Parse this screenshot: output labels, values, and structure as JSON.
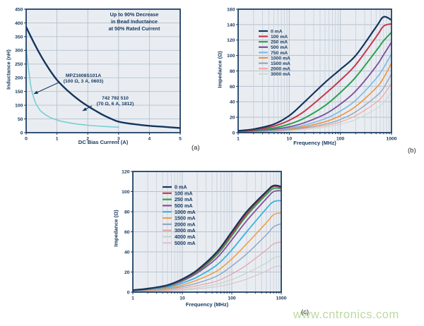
{
  "watermark": {
    "text": "www.cntronics.com",
    "color": "#b9d79e"
  },
  "panel_labels": {
    "a": "(a)",
    "b": "(b)",
    "c": "(c)"
  },
  "colors": {
    "axis": "#14365c",
    "plot_bg": "#e9edf2",
    "grid_major": "#b4c1cd",
    "grid_minor": "#c9d2dc",
    "text": "#14365c"
  },
  "chart_data": [
    {
      "id": "a",
      "type": "line",
      "xlabel": "DC Bias Current (A)",
      "ylabel": "Inductance (nH)",
      "xscale": "linear",
      "xlim": [
        0,
        5
      ],
      "xticks": [
        0,
        1,
        2,
        3,
        4,
        5
      ],
      "ylim": [
        0,
        450
      ],
      "ytick_step": 50,
      "grid": true,
      "annotation_box": [
        "Up to 90% Decrease",
        "in Bead Inductance",
        "at 50% Rated Current"
      ],
      "annotations": [
        {
          "lines": [
            "MPZ1608S101A",
            "(100 Ω, 3 A, 0603)"
          ]
        },
        {
          "lines": [
            "742 792 510",
            "(70 Ω, 6 A, 1812)"
          ]
        }
      ],
      "series": [
        {
          "name": "MPZ1608S101A (100 Ω, 3 A, 0603)",
          "color": "#79ced2",
          "width": 1.6,
          "x": [
            0,
            0.05,
            0.1,
            0.15,
            0.2,
            0.3,
            0.4,
            0.5,
            0.75,
            1,
            1.25,
            1.5,
            2,
            2.5,
            3
          ],
          "y": [
            305,
            258,
            212,
            172,
            145,
            110,
            90,
            76,
            57,
            46,
            39,
            34,
            27,
            23,
            20
          ]
        },
        {
          "name": "742 792 510 (70 Ω, 6 A, 1812)",
          "color": "#14365c",
          "width": 2.4,
          "x": [
            0,
            0.25,
            0.5,
            0.75,
            1,
            1.25,
            1.5,
            1.75,
            2,
            2.25,
            2.5,
            2.75,
            3,
            3.5,
            4,
            4.5,
            5
          ],
          "y": [
            385,
            328,
            276,
            231,
            192,
            163,
            138,
            116,
            97,
            80,
            64,
            51,
            40,
            31,
            25,
            21,
            17
          ]
        }
      ]
    },
    {
      "id": "b",
      "type": "line",
      "xlabel": "Frequency (MHz)",
      "ylabel": "Impedance (Ω)",
      "xscale": "log",
      "xlim": [
        1,
        1000
      ],
      "xticklabels": [
        "1",
        "10",
        "100",
        "1000"
      ],
      "ylim": [
        0,
        160
      ],
      "ytick_step": 20,
      "grid": true,
      "legend_position": "upper-left",
      "x": [
        1,
        2,
        5,
        10,
        20,
        50,
        100,
        200,
        500,
        700,
        1000
      ],
      "series": [
        {
          "name": "0 mA",
          "color": "#14365c",
          "width": 2.2,
          "values": [
            2.5,
            4.5,
            11,
            22,
            40,
            65,
            82,
            100,
            137,
            150,
            146
          ]
        },
        {
          "name": "100 mA",
          "color": "#c23a50",
          "width": 2.0,
          "values": [
            2,
            3.5,
            8.5,
            16,
            28,
            50,
            68,
            88,
            124,
            138,
            141
          ]
        },
        {
          "name": "250 mA",
          "color": "#2da04d",
          "width": 2.0,
          "values": [
            1.8,
            3,
            6,
            11,
            19,
            35,
            52,
            72,
            106,
            119,
            130
          ]
        },
        {
          "name": "500 mA",
          "color": "#7e4d9b",
          "width": 1.8,
          "values": [
            1.5,
            2.5,
            4.5,
            7.5,
            13,
            24,
            37,
            54,
            86,
            101,
            117
          ]
        },
        {
          "name": "750 mA",
          "color": "#7db9e3",
          "width": 1.6,
          "values": [
            1.2,
            2,
            3.5,
            6,
            10,
            18,
            28,
            42,
            70,
            84,
            102
          ]
        },
        {
          "name": "1000 mA",
          "color": "#f0923f",
          "width": 1.6,
          "values": [
            1,
            1.8,
            3,
            5,
            8,
            14,
            22,
            34,
            58,
            71,
            90
          ]
        },
        {
          "name": "1500 mA",
          "color": "#8fa6c0",
          "width": 1.4,
          "values": [
            1,
            1.5,
            2.5,
            4,
            6.5,
            11,
            17,
            27,
            47,
            58,
            76
          ]
        },
        {
          "name": "2000 mA",
          "color": "#f2a5a0",
          "width": 1.2,
          "values": [
            0.8,
            1.2,
            2,
            3.5,
            5.5,
            9,
            14,
            22,
            39,
            49,
            64
          ]
        },
        {
          "name": "3000 mA",
          "color": "#ccdccd",
          "width": 1.2,
          "values": [
            0.6,
            1,
            1.6,
            2.6,
            4,
            7,
            11,
            17,
            31,
            39,
            52
          ]
        }
      ]
    },
    {
      "id": "c",
      "type": "line",
      "xlabel": "Frequency (MHz)",
      "ylabel": "Impedance (Ω)",
      "xscale": "log",
      "xlim": [
        1,
        1000
      ],
      "xticklabels": [
        "1",
        "10",
        "100",
        "1000"
      ],
      "ylim": [
        0,
        120
      ],
      "ytick_step": 20,
      "grid": true,
      "legend_position": "upper-left",
      "x": [
        1,
        2,
        5,
        10,
        20,
        50,
        100,
        200,
        500,
        700,
        1000
      ],
      "series": [
        {
          "name": "0 mA",
          "color": "#14365c",
          "width": 2.2,
          "values": [
            2,
            3.5,
            7,
            13,
            22,
            40,
            60,
            80,
            100,
            106,
            105
          ]
        },
        {
          "name": "100 mA",
          "color": "#c23a50",
          "width": 2.0,
          "values": [
            2,
            3.4,
            6.8,
            12.5,
            21,
            39,
            58,
            78,
            99,
            105,
            104
          ]
        },
        {
          "name": "250 mA",
          "color": "#2da04d",
          "width": 1.8,
          "values": [
            1.9,
            3.2,
            6.4,
            12,
            20,
            37,
            56,
            76,
            97,
            103,
            103
          ]
        },
        {
          "name": "500 mA",
          "color": "#8a4f99",
          "width": 1.8,
          "values": [
            1.8,
            3,
            6,
            11,
            19,
            34,
            52,
            71,
            93,
            100,
            101
          ]
        },
        {
          "name": "1000 mA",
          "color": "#3eb1df",
          "width": 1.8,
          "values": [
            1.5,
            2.5,
            5,
            9,
            15,
            27,
            42,
            60,
            83,
            90,
            91
          ]
        },
        {
          "name": "1500 mA",
          "color": "#eda14c",
          "width": 1.6,
          "values": [
            1.2,
            2,
            4,
            7,
            12,
            21,
            33,
            48,
            69,
            77,
            79
          ]
        },
        {
          "name": "2000 mA",
          "color": "#8fa6c0",
          "width": 1.4,
          "values": [
            1,
            1.7,
            3.2,
            5.5,
            9,
            16,
            26,
            38,
            57,
            65,
            68
          ]
        },
        {
          "name": "3000 mA",
          "color": "#e5a2a6",
          "width": 1.2,
          "values": [
            0.8,
            1.2,
            2.2,
            4,
            6.5,
            11,
            18,
            27,
            42,
            48,
            50
          ]
        },
        {
          "name": "4000 mA",
          "color": "#c6d5c3",
          "width": 1.2,
          "values": [
            0.5,
            0.9,
            1.6,
            2.8,
            4.5,
            8,
            12.5,
            19,
            29,
            34,
            36
          ]
        },
        {
          "name": "5000 mA",
          "color": "#dcc3cf",
          "width": 1.2,
          "values": [
            0.4,
            0.7,
            1.2,
            2,
            3.2,
            5.5,
            8.5,
            13,
            21,
            25,
            26
          ]
        }
      ]
    }
  ]
}
